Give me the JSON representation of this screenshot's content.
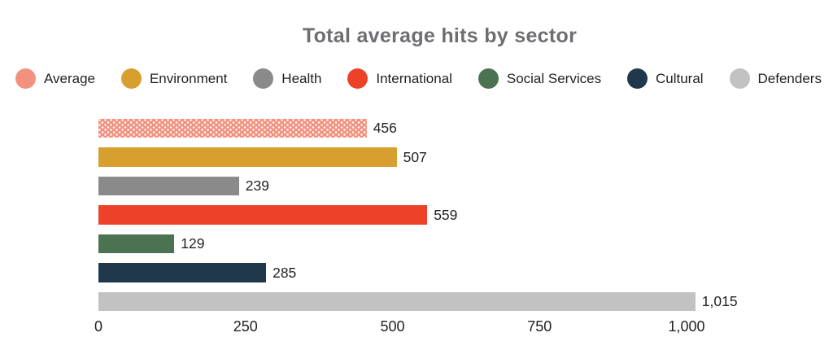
{
  "title": "Total average hits by sector",
  "colors": {
    "background": "#FFFFFF",
    "title_text": "#6D6E71",
    "label_text": "#231F20"
  },
  "legend": {
    "items": [
      {
        "label": "Average",
        "color": "#F3917F"
      },
      {
        "label": "Environment",
        "color": "#D69F2E"
      },
      {
        "label": "Health",
        "color": "#8A8A8A"
      },
      {
        "label": "International",
        "color": "#EE4129"
      },
      {
        "label": "Social Services",
        "color": "#4C7351"
      },
      {
        "label": "Cultural",
        "color": "#1F384B"
      },
      {
        "label": "Defenders",
        "color": "#C2C2C2"
      }
    ]
  },
  "chart_data": {
    "type": "bar",
    "orientation": "horizontal",
    "title": "Total average hits by sector",
    "categories": [
      "Average",
      "Environment",
      "Health",
      "International",
      "Social Services",
      "Cultural",
      "Defenders"
    ],
    "values": [
      456,
      507,
      239,
      559,
      129,
      285,
      1015
    ],
    "value_labels": [
      "456",
      "507",
      "239",
      "559",
      "129",
      "285",
      "1,015"
    ],
    "colors": [
      "#F3917F",
      "#D69F2E",
      "#8A8A8A",
      "#EE4129",
      "#4C7351",
      "#1F384B",
      "#C2C2C2"
    ],
    "patterns": [
      "dots",
      "solid",
      "solid",
      "solid",
      "solid",
      "solid",
      "solid"
    ],
    "xlabel": "",
    "ylabel": "",
    "xlim": [
      0,
      1000
    ],
    "x_ticks": [
      0,
      250,
      500,
      750,
      1000
    ],
    "x_tick_labels": [
      "0",
      "250",
      "500",
      "750",
      "1,000"
    ],
    "legend_position": "top",
    "grid": false
  }
}
